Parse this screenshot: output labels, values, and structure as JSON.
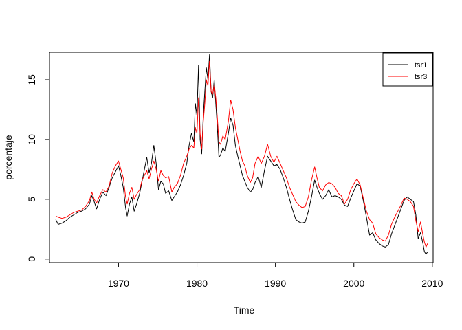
{
  "chart_data": {
    "type": "line",
    "title": "",
    "xlabel": "Time",
    "ylabel": "porcentaje",
    "xlim": [
      1961.2,
      2010.1
    ],
    "ylim": [
      -0.3,
      17.3
    ],
    "x_ticks": [
      1970,
      1980,
      1990,
      2000,
      2010
    ],
    "y_ticks": [
      0,
      5,
      10,
      15
    ],
    "grid": false,
    "legend": {
      "position": "top-right",
      "entries": [
        "tsr1",
        "tsr3"
      ]
    },
    "series": [
      {
        "name": "tsr1",
        "color": "#000000",
        "points": [
          [
            1962.0,
            3.3
          ],
          [
            1962.3,
            2.9
          ],
          [
            1962.8,
            3.0
          ],
          [
            1963.3,
            3.2
          ],
          [
            1963.8,
            3.5
          ],
          [
            1964.3,
            3.7
          ],
          [
            1964.8,
            3.9
          ],
          [
            1965.3,
            4.0
          ],
          [
            1965.8,
            4.2
          ],
          [
            1966.3,
            4.6
          ],
          [
            1966.6,
            5.3
          ],
          [
            1966.9,
            4.8
          ],
          [
            1967.2,
            4.2
          ],
          [
            1967.6,
            5.0
          ],
          [
            1968.0,
            5.6
          ],
          [
            1968.4,
            5.3
          ],
          [
            1968.8,
            6.0
          ],
          [
            1969.2,
            6.8
          ],
          [
            1969.6,
            7.3
          ],
          [
            1970.0,
            7.8
          ],
          [
            1970.3,
            7.0
          ],
          [
            1970.6,
            6.0
          ],
          [
            1970.9,
            4.3
          ],
          [
            1971.1,
            3.6
          ],
          [
            1971.4,
            4.6
          ],
          [
            1971.7,
            5.2
          ],
          [
            1972.0,
            4.0
          ],
          [
            1972.3,
            4.6
          ],
          [
            1972.7,
            5.5
          ],
          [
            1973.0,
            6.5
          ],
          [
            1973.3,
            7.5
          ],
          [
            1973.6,
            8.5
          ],
          [
            1973.9,
            7.2
          ],
          [
            1974.2,
            8.0
          ],
          [
            1974.5,
            9.5
          ],
          [
            1974.8,
            8.0
          ],
          [
            1975.1,
            5.8
          ],
          [
            1975.4,
            6.5
          ],
          [
            1975.7,
            6.3
          ],
          [
            1976.0,
            5.5
          ],
          [
            1976.4,
            5.7
          ],
          [
            1976.8,
            4.9
          ],
          [
            1977.1,
            5.2
          ],
          [
            1977.5,
            5.6
          ],
          [
            1977.9,
            6.2
          ],
          [
            1978.3,
            7.0
          ],
          [
            1978.7,
            8.0
          ],
          [
            1979.0,
            9.5
          ],
          [
            1979.3,
            10.5
          ],
          [
            1979.6,
            9.8
          ],
          [
            1979.8,
            13.0
          ],
          [
            1980.0,
            12.0
          ],
          [
            1980.2,
            16.2
          ],
          [
            1980.4,
            10.0
          ],
          [
            1980.6,
            8.8
          ],
          [
            1980.8,
            12.0
          ],
          [
            1981.0,
            14.0
          ],
          [
            1981.2,
            16.0
          ],
          [
            1981.4,
            15.0
          ],
          [
            1981.6,
            17.1
          ],
          [
            1981.8,
            14.0
          ],
          [
            1982.0,
            13.5
          ],
          [
            1982.2,
            15.0
          ],
          [
            1982.4,
            13.0
          ],
          [
            1982.6,
            11.0
          ],
          [
            1982.8,
            8.5
          ],
          [
            1983.0,
            8.7
          ],
          [
            1983.3,
            9.3
          ],
          [
            1983.6,
            9.0
          ],
          [
            1984.0,
            10.5
          ],
          [
            1984.3,
            11.8
          ],
          [
            1984.6,
            11.2
          ],
          [
            1984.9,
            9.5
          ],
          [
            1985.2,
            8.6
          ],
          [
            1985.5,
            7.8
          ],
          [
            1985.8,
            7.0
          ],
          [
            1986.1,
            6.5
          ],
          [
            1986.4,
            6.0
          ],
          [
            1986.8,
            5.6
          ],
          [
            1987.1,
            5.8
          ],
          [
            1987.4,
            6.4
          ],
          [
            1987.8,
            6.9
          ],
          [
            1988.2,
            6.0
          ],
          [
            1988.6,
            7.4
          ],
          [
            1989.0,
            8.6
          ],
          [
            1989.4,
            8.2
          ],
          [
            1989.8,
            7.8
          ],
          [
            1990.2,
            7.9
          ],
          [
            1990.6,
            7.5
          ],
          [
            1991.0,
            6.8
          ],
          [
            1991.4,
            6.0
          ],
          [
            1991.8,
            5.0
          ],
          [
            1992.2,
            4.1
          ],
          [
            1992.6,
            3.3
          ],
          [
            1993.0,
            3.1
          ],
          [
            1993.4,
            3.0
          ],
          [
            1993.8,
            3.1
          ],
          [
            1994.2,
            4.0
          ],
          [
            1994.6,
            5.2
          ],
          [
            1995.0,
            6.6
          ],
          [
            1995.3,
            6.0
          ],
          [
            1995.6,
            5.5
          ],
          [
            1996.0,
            5.0
          ],
          [
            1996.4,
            5.3
          ],
          [
            1996.8,
            5.8
          ],
          [
            1997.2,
            5.2
          ],
          [
            1997.6,
            5.3
          ],
          [
            1998.0,
            5.2
          ],
          [
            1998.4,
            5.0
          ],
          [
            1998.8,
            4.5
          ],
          [
            1999.2,
            4.4
          ],
          [
            1999.6,
            5.1
          ],
          [
            2000.0,
            5.7
          ],
          [
            2000.4,
            6.3
          ],
          [
            2000.8,
            6.1
          ],
          [
            2001.2,
            4.9
          ],
          [
            2001.6,
            3.5
          ],
          [
            2002.0,
            2.0
          ],
          [
            2002.4,
            2.2
          ],
          [
            2002.8,
            1.6
          ],
          [
            2003.2,
            1.3
          ],
          [
            2003.6,
            1.1
          ],
          [
            2004.0,
            1.0
          ],
          [
            2004.4,
            1.2
          ],
          [
            2004.8,
            2.1
          ],
          [
            2005.2,
            2.8
          ],
          [
            2005.6,
            3.5
          ],
          [
            2006.0,
            4.2
          ],
          [
            2006.4,
            4.9
          ],
          [
            2006.8,
            5.2
          ],
          [
            2007.2,
            5.0
          ],
          [
            2007.6,
            4.8
          ],
          [
            2007.9,
            3.7
          ],
          [
            2008.2,
            1.7
          ],
          [
            2008.5,
            2.2
          ],
          [
            2008.8,
            1.3
          ],
          [
            2009.0,
            0.6
          ],
          [
            2009.2,
            0.4
          ],
          [
            2009.4,
            0.6
          ]
        ]
      },
      {
        "name": "tsr3",
        "color": "#ff0000",
        "points": [
          [
            1962.0,
            3.6
          ],
          [
            1962.3,
            3.5
          ],
          [
            1962.8,
            3.4
          ],
          [
            1963.3,
            3.5
          ],
          [
            1963.8,
            3.7
          ],
          [
            1964.3,
            3.9
          ],
          [
            1964.8,
            4.0
          ],
          [
            1965.3,
            4.1
          ],
          [
            1965.8,
            4.4
          ],
          [
            1966.3,
            4.9
          ],
          [
            1966.6,
            5.6
          ],
          [
            1966.9,
            5.0
          ],
          [
            1967.2,
            4.7
          ],
          [
            1967.6,
            5.3
          ],
          [
            1968.0,
            5.8
          ],
          [
            1968.4,
            5.6
          ],
          [
            1968.8,
            6.1
          ],
          [
            1969.2,
            7.2
          ],
          [
            1969.6,
            7.8
          ],
          [
            1970.0,
            8.2
          ],
          [
            1970.3,
            7.5
          ],
          [
            1970.6,
            6.8
          ],
          [
            1970.9,
            5.2
          ],
          [
            1971.1,
            4.6
          ],
          [
            1971.4,
            5.5
          ],
          [
            1971.7,
            6.0
          ],
          [
            1972.0,
            5.0
          ],
          [
            1972.3,
            5.4
          ],
          [
            1972.7,
            5.8
          ],
          [
            1973.0,
            6.6
          ],
          [
            1973.3,
            7.0
          ],
          [
            1973.6,
            7.4
          ],
          [
            1973.9,
            6.7
          ],
          [
            1974.2,
            7.5
          ],
          [
            1974.5,
            8.2
          ],
          [
            1974.8,
            7.5
          ],
          [
            1975.1,
            6.5
          ],
          [
            1975.4,
            7.4
          ],
          [
            1975.7,
            7.0
          ],
          [
            1976.0,
            6.8
          ],
          [
            1976.4,
            6.9
          ],
          [
            1976.8,
            5.6
          ],
          [
            1977.1,
            6.0
          ],
          [
            1977.5,
            6.3
          ],
          [
            1977.9,
            7.0
          ],
          [
            1978.3,
            8.0
          ],
          [
            1978.7,
            8.6
          ],
          [
            1979.0,
            9.2
          ],
          [
            1979.3,
            9.5
          ],
          [
            1979.6,
            9.3
          ],
          [
            1979.8,
            11.0
          ],
          [
            1980.0,
            10.5
          ],
          [
            1980.2,
            13.5
          ],
          [
            1980.4,
            10.5
          ],
          [
            1980.6,
            9.2
          ],
          [
            1980.8,
            11.5
          ],
          [
            1981.0,
            13.0
          ],
          [
            1981.2,
            15.0
          ],
          [
            1981.4,
            14.5
          ],
          [
            1981.6,
            16.6
          ],
          [
            1981.8,
            14.0
          ],
          [
            1982.0,
            13.8
          ],
          [
            1982.2,
            14.6
          ],
          [
            1982.4,
            13.5
          ],
          [
            1982.6,
            11.8
          ],
          [
            1982.8,
            9.8
          ],
          [
            1983.0,
            9.6
          ],
          [
            1983.3,
            10.3
          ],
          [
            1983.6,
            10.0
          ],
          [
            1984.0,
            11.5
          ],
          [
            1984.3,
            13.3
          ],
          [
            1984.6,
            12.5
          ],
          [
            1984.9,
            11.0
          ],
          [
            1985.2,
            10.0
          ],
          [
            1985.5,
            9.0
          ],
          [
            1985.8,
            8.2
          ],
          [
            1986.1,
            7.8
          ],
          [
            1986.4,
            7.0
          ],
          [
            1986.8,
            6.4
          ],
          [
            1987.1,
            6.8
          ],
          [
            1987.4,
            8.0
          ],
          [
            1987.8,
            8.6
          ],
          [
            1988.2,
            8.0
          ],
          [
            1988.6,
            8.6
          ],
          [
            1989.0,
            9.6
          ],
          [
            1989.4,
            8.6
          ],
          [
            1989.8,
            8.1
          ],
          [
            1990.2,
            8.6
          ],
          [
            1990.6,
            8.0
          ],
          [
            1991.0,
            7.4
          ],
          [
            1991.4,
            6.8
          ],
          [
            1991.8,
            6.0
          ],
          [
            1992.2,
            5.4
          ],
          [
            1992.6,
            4.8
          ],
          [
            1993.0,
            4.5
          ],
          [
            1993.4,
            4.3
          ],
          [
            1993.8,
            4.4
          ],
          [
            1994.2,
            5.2
          ],
          [
            1994.6,
            6.6
          ],
          [
            1995.0,
            7.7
          ],
          [
            1995.3,
            6.8
          ],
          [
            1995.6,
            6.0
          ],
          [
            1996.0,
            5.7
          ],
          [
            1996.4,
            6.2
          ],
          [
            1996.8,
            6.4
          ],
          [
            1997.2,
            6.3
          ],
          [
            1997.6,
            6.0
          ],
          [
            1998.0,
            5.5
          ],
          [
            1998.4,
            5.3
          ],
          [
            1998.8,
            4.6
          ],
          [
            1999.2,
            5.0
          ],
          [
            1999.6,
            5.8
          ],
          [
            2000.0,
            6.3
          ],
          [
            2000.4,
            6.7
          ],
          [
            2000.8,
            6.2
          ],
          [
            2001.2,
            5.1
          ],
          [
            2001.6,
            4.0
          ],
          [
            2002.0,
            3.3
          ],
          [
            2002.4,
            3.0
          ],
          [
            2002.8,
            2.1
          ],
          [
            2003.2,
            1.8
          ],
          [
            2003.6,
            1.6
          ],
          [
            2004.0,
            1.5
          ],
          [
            2004.4,
            2.0
          ],
          [
            2004.8,
            2.9
          ],
          [
            2005.2,
            3.5
          ],
          [
            2005.6,
            4.0
          ],
          [
            2006.0,
            4.5
          ],
          [
            2006.4,
            5.1
          ],
          [
            2006.8,
            5.0
          ],
          [
            2007.2,
            4.8
          ],
          [
            2007.6,
            4.4
          ],
          [
            2007.9,
            3.2
          ],
          [
            2008.2,
            2.3
          ],
          [
            2008.5,
            3.1
          ],
          [
            2008.8,
            2.0
          ],
          [
            2009.0,
            1.4
          ],
          [
            2009.2,
            1.0
          ],
          [
            2009.4,
            1.3
          ]
        ]
      }
    ]
  }
}
